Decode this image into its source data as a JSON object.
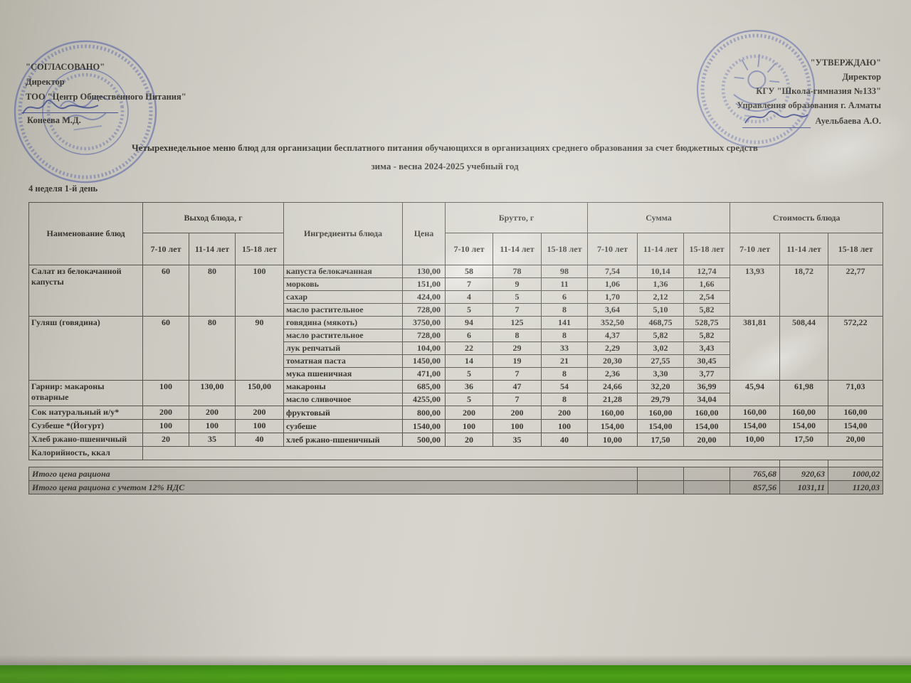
{
  "approval_left": {
    "quoted_title": "\"СОГЛАСОВАНО\"",
    "role": "Директор",
    "org": "ТОО \"Центр Общественного Питания\"",
    "signer": "Конеева М.Д."
  },
  "approval_right": {
    "quoted_title": "\"УТВЕРЖДАЮ\"",
    "role": "Директор",
    "org": "КГУ  \"Школа-гимназия №133\"",
    "org2": "Управления образования г. Алматы",
    "signer": "Ауельбаева А.О."
  },
  "title_line1": "Четырехнедельное меню блюд для организации бесплатного питания обучающихся в организациях среднего образования за счет бюджетных средств",
  "title_line2": "зима - весна 2024-2025 учебный год",
  "week_day_label": "4 неделя 1-й день",
  "table": {
    "headers": {
      "name": "Наименование блюд",
      "yield": "Выход блюда, г",
      "ingredients": "Ингредиенты блюда",
      "price": "Цена",
      "brutto": "Брутто, г",
      "summa": "Сумма",
      "cost": "Стоимость блюда"
    },
    "age_groups": [
      "7-10 лет",
      "11-14 лет",
      "15-18 лет"
    ],
    "dishes": [
      {
        "name": "Салат из белокачанной капусты",
        "yield": [
          "60",
          "80",
          "100"
        ],
        "cost": [
          "13,93",
          "18,72",
          "22,77"
        ],
        "rows": [
          {
            "ingredient": "капуста белокачанная",
            "price": "130,00",
            "brutto": [
              "58",
              "78",
              "98"
            ],
            "summa": [
              "7,54",
              "10,14",
              "12,74"
            ]
          },
          {
            "ingredient": "морковь",
            "price": "151,00",
            "brutto": [
              "7",
              "9",
              "11"
            ],
            "summa": [
              "1,06",
              "1,36",
              "1,66"
            ]
          },
          {
            "ingredient": "сахар",
            "price": "424,00",
            "brutto": [
              "4",
              "5",
              "6"
            ],
            "summa": [
              "1,70",
              "2,12",
              "2,54"
            ]
          },
          {
            "ingredient": "масло растительное",
            "price": "728,00",
            "brutto": [
              "5",
              "7",
              "8"
            ],
            "summa": [
              "3,64",
              "5,10",
              "5,82"
            ]
          }
        ]
      },
      {
        "name": "Гуляш (говядина)",
        "yield": [
          "60",
          "80",
          "90"
        ],
        "cost": [
          "381,81",
          "508,44",
          "572,22"
        ],
        "rows": [
          {
            "ingredient": "говядина (мякоть)",
            "price": "3750,00",
            "brutto": [
              "94",
              "125",
              "141"
            ],
            "summa": [
              "352,50",
              "468,75",
              "528,75"
            ]
          },
          {
            "ingredient": "масло растительное",
            "price": "728,00",
            "brutto": [
              "6",
              "8",
              "8"
            ],
            "summa": [
              "4,37",
              "5,82",
              "5,82"
            ]
          },
          {
            "ingredient": "лук репчатый",
            "price": "104,00",
            "brutto": [
              "22",
              "29",
              "33"
            ],
            "summa": [
              "2,29",
              "3,02",
              "3,43"
            ]
          },
          {
            "ingredient": "томатная паста",
            "price": "1450,00",
            "brutto": [
              "14",
              "19",
              "21"
            ],
            "summa": [
              "20,30",
              "27,55",
              "30,45"
            ]
          },
          {
            "ingredient": "мука пшеничная",
            "price": "471,00",
            "brutto": [
              "5",
              "7",
              "8"
            ],
            "summa": [
              "2,36",
              "3,30",
              "3,77"
            ]
          }
        ]
      },
      {
        "name": "Гарнир: макароны отварные",
        "yield": [
          "100",
          "130,00",
          "150,00"
        ],
        "cost": [
          "45,94",
          "61,98",
          "71,03"
        ],
        "rows": [
          {
            "ingredient": "макароны",
            "price": "685,00",
            "brutto": [
              "36",
              "47",
              "54"
            ],
            "summa": [
              "24,66",
              "32,20",
              "36,99"
            ]
          },
          {
            "ingredient": "масло сливочное",
            "price": "4255,00",
            "brutto": [
              "5",
              "7",
              "8"
            ],
            "summa": [
              "21,28",
              "29,79",
              "34,04"
            ]
          }
        ]
      },
      {
        "name": "Сок натуральный и/у*",
        "yield": [
          "200",
          "200",
          "200"
        ],
        "cost": [
          "160,00",
          "160,00",
          "160,00"
        ],
        "rows": [
          {
            "ingredient": "фруктовый",
            "price": "800,00",
            "brutto": [
              "200",
              "200",
              "200"
            ],
            "summa": [
              "160,00",
              "160,00",
              "160,00"
            ]
          }
        ]
      },
      {
        "name": "Сузбеше *(Йогурт)",
        "yield": [
          "100",
          "100",
          "100"
        ],
        "cost": [
          "154,00",
          "154,00",
          "154,00"
        ],
        "rows": [
          {
            "ingredient": "сузбеше",
            "price": "1540,00",
            "brutto": [
              "100",
              "100",
              "100"
            ],
            "summa": [
              "154,00",
              "154,00",
              "154,00"
            ]
          }
        ]
      },
      {
        "name": "Хлеб ржано-пшеничный",
        "yield": [
          "20",
          "35",
          "40"
        ],
        "cost": [
          "10,00",
          "17,50",
          "20,00"
        ],
        "rows": [
          {
            "ingredient": "хлеб ржано-пшеничный",
            "price": "500,00",
            "brutto": [
              "20",
              "35",
              "40"
            ],
            "summa": [
              "10,00",
              "17,50",
              "20,00"
            ]
          }
        ]
      }
    ],
    "kcal_label": "Калорийность, ккал",
    "totals": [
      {
        "label": "Итого цена рациона",
        "values": [
          "765,68",
          "920,63",
          "1000,02"
        ]
      },
      {
        "label": "Итого цена рациона с учетом 12% НДС",
        "values": [
          "857,56",
          "1031,11",
          "1120,03"
        ]
      }
    ]
  },
  "stamp_color": "#4553a5"
}
